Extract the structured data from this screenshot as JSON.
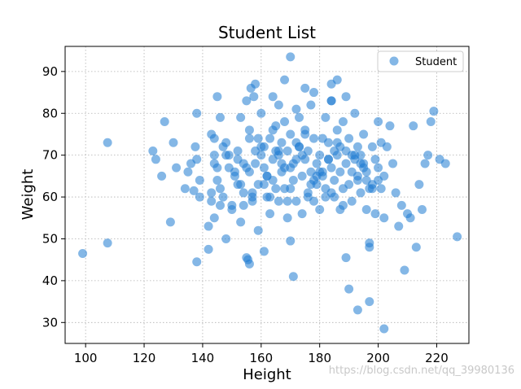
{
  "chart_data": {
    "type": "scatter",
    "title": "Student List",
    "xlabel": "Height",
    "ylabel": "Weight",
    "xlim": [
      93,
      231
    ],
    "ylim": [
      25,
      96
    ],
    "xticks": [
      100,
      120,
      140,
      160,
      180,
      200,
      220
    ],
    "yticks": [
      30,
      40,
      50,
      60,
      70,
      80,
      90
    ],
    "grid": true,
    "legend_position": "top-right",
    "point_color": "#1f7bd1",
    "point_alpha": 0.55,
    "series": [
      {
        "name": "Student",
        "x": [
          99,
          107.5,
          107.5,
          124,
          123,
          126,
          127,
          129,
          130,
          131,
          134,
          135,
          136,
          137,
          137.5,
          138,
          138,
          139,
          139,
          138,
          142,
          142,
          143,
          143,
          144,
          144,
          144,
          145,
          145,
          146,
          146,
          147,
          148,
          148,
          149,
          150,
          151,
          152,
          152,
          153,
          153,
          154,
          154,
          155,
          155,
          156,
          156,
          156,
          157,
          158,
          158,
          159,
          159,
          160,
          160,
          161,
          161,
          162,
          162,
          163,
          163,
          164,
          164,
          165,
          165,
          166,
          166,
          167,
          167,
          168,
          168,
          169,
          169,
          170,
          170,
          170,
          171,
          171,
          172,
          172,
          173,
          173,
          174,
          174,
          175,
          175,
          176,
          176,
          177,
          177,
          178,
          178,
          179,
          179,
          180,
          180,
          181,
          181,
          182,
          182,
          183,
          183,
          184,
          184,
          185,
          185,
          186,
          186,
          187,
          187,
          188,
          188,
          189,
          189,
          190,
          190,
          191,
          191,
          192,
          192,
          193,
          193,
          194,
          194,
          195,
          195,
          196,
          196,
          197,
          197,
          198,
          198,
          199,
          199,
          200,
          200,
          201,
          202,
          203,
          204,
          205,
          206,
          207,
          208,
          209,
          210,
          211,
          212,
          213,
          214,
          215,
          216,
          217,
          218,
          219,
          221,
          223,
          227,
          145,
          150,
          155,
          160,
          165,
          170,
          175,
          180,
          185,
          190,
          195,
          200,
          147,
          152,
          157,
          162,
          167,
          172,
          177,
          182,
          187,
          192,
          197,
          202,
          149,
          154,
          159,
          164,
          169,
          174,
          179,
          184,
          189,
          194,
          143,
          148,
          153,
          158,
          163,
          168,
          173,
          178,
          183,
          188,
          193,
          198,
          146,
          151,
          156,
          161,
          166,
          171,
          176,
          181,
          186,
          191,
          196,
          201,
          144,
          157,
          166,
          175,
          184,
          193,
          202,
          155.5,
          156.5,
          157.5,
          170,
          184,
          189,
          197,
          186,
          178,
          172,
          164,
          161,
          168
        ],
        "y": [
          46.5,
          73,
          49,
          69,
          71,
          65,
          78,
          54,
          73,
          67,
          62,
          66,
          68,
          61.5,
          72,
          80,
          44.5,
          64,
          60,
          69,
          53,
          47.5,
          75,
          59,
          68,
          74,
          55,
          84,
          67,
          79,
          62,
          60,
          73,
          50,
          70,
          57,
          65,
          71,
          63,
          79,
          54,
          68,
          61,
          83,
          45.5,
          44,
          76,
          66,
          59,
          87,
          71,
          63,
          52,
          72,
          80,
          67,
          47,
          60,
          65,
          74,
          56,
          69,
          84,
          62,
          77,
          70,
          59,
          66,
          73,
          62,
          88,
          71,
          55,
          67,
          75,
          49.5,
          41,
          64,
          69,
          59,
          79,
          72,
          65,
          56,
          69,
          76,
          61,
          71,
          66,
          82,
          59,
          74,
          63,
          68,
          70,
          57,
          74,
          65,
          62,
          79,
          69,
          73,
          87,
          67,
          64,
          60,
          76,
          70,
          57,
          72,
          62,
          78,
          68,
          45.5,
          38,
          74,
          66,
          59,
          69,
          80,
          64,
          72,
          61,
          70,
          68,
          75,
          57,
          66,
          35,
          49,
          72,
          63,
          69,
          56,
          67,
          78,
          73,
          55,
          72,
          77,
          68,
          61,
          53,
          58,
          42.5,
          56,
          55,
          77,
          48,
          63,
          57,
          68,
          70,
          78,
          80.5,
          69,
          68,
          50.5,
          64,
          58,
          67,
          70,
          71,
          62,
          75,
          66,
          71,
          63,
          67,
          64,
          72,
          69,
          61,
          65,
          68,
          73,
          63,
          60,
          66,
          70,
          62,
          65,
          67,
          58,
          74,
          64,
          59,
          70,
          65,
          61,
          71,
          68,
          61,
          70,
          63,
          68,
          60,
          67,
          72,
          64,
          69,
          58,
          65,
          62,
          58,
          66,
          74,
          63,
          71,
          68,
          60,
          66,
          73,
          70,
          64,
          62,
          70,
          60,
          82,
          86,
          83,
          33,
          28.5,
          45,
          86,
          84,
          93.5,
          83,
          84,
          48,
          88,
          85,
          81,
          76,
          72,
          78
        ]
      }
    ]
  },
  "legend": {
    "label": "Student"
  },
  "watermark": {
    "text": "https://blog.csdn.net/qq_39980136"
  }
}
